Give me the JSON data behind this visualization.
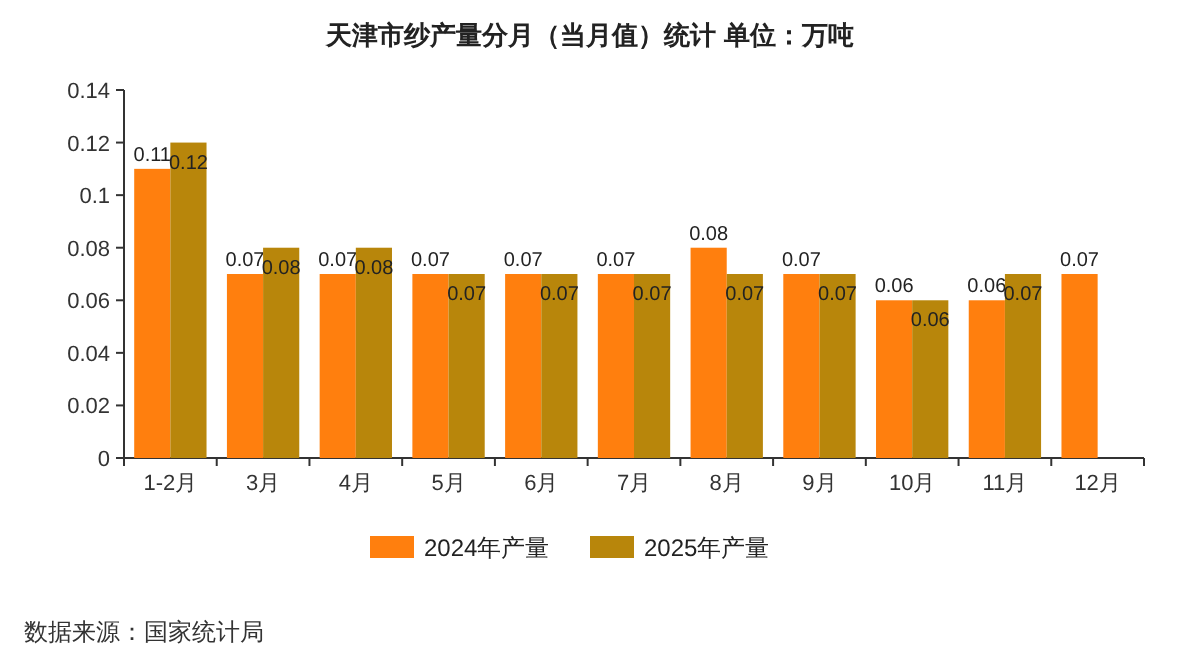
{
  "chart_data": {
    "type": "bar",
    "title": "天津市纱产量分月（当月值）统计 单位：万吨",
    "categories": [
      "1-2月",
      "3月",
      "4月",
      "5月",
      "6月",
      "7月",
      "8月",
      "9月",
      "10月",
      "11月",
      "12月"
    ],
    "series": [
      {
        "name": "2024年产量",
        "color": "#ff7f0e",
        "values": [
          0.11,
          0.07,
          0.07,
          0.07,
          0.07,
          0.07,
          0.08,
          0.07,
          0.06,
          0.06,
          0.07
        ]
      },
      {
        "name": "2025年产量",
        "color": "#b8860b",
        "values": [
          0.12,
          0.08,
          0.08,
          0.07,
          0.07,
          0.07,
          0.07,
          0.07,
          0.06,
          0.07,
          null
        ]
      }
    ],
    "ylim": [
      0,
      0.14
    ],
    "yticks": [
      0,
      0.02,
      0.04,
      0.06,
      0.08,
      0.1,
      0.12,
      0.14
    ],
    "data_labels": true,
    "legend": "bottom",
    "annotations": [
      "数据来源：国家统计局"
    ]
  }
}
